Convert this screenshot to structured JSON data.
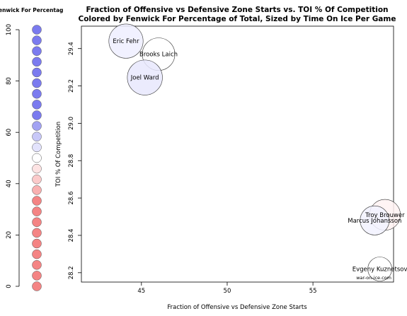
{
  "chart_data": {
    "type": "scatter",
    "title_line1": "Fraction of Offensive vs Defensive Zone Starts vs. TOI % Of Competition",
    "title_line2": "Colored by Fenwick For Percentage of Total, Sized by Time On Ice Per Game",
    "xlabel": "Fraction of Offensive vs Defensive Zone Starts",
    "ylabel": "TOI % Of Competition",
    "xlim": [
      41.5,
      59.7
    ],
    "ylim": [
      28.15,
      29.52
    ],
    "xticks": [
      45,
      50,
      55
    ],
    "yticks": [
      28.2,
      28.4,
      28.6,
      28.8,
      29.0,
      29.2,
      29.4
    ],
    "credit": "war-on-ice.com",
    "points": [
      {
        "label": "Eric Fehr",
        "x": 44.1,
        "y": 29.44,
        "toi": 15.2,
        "fenwick_pct": 49.5,
        "color": "#efefff"
      },
      {
        "label": "Brooks Laich",
        "x": 46.0,
        "y": 29.37,
        "toi": 15.0,
        "fenwick_pct": 50.0,
        "color": "#ffffff"
      },
      {
        "label": "Joel Ward",
        "x": 45.2,
        "y": 29.245,
        "toi": 15.3,
        "fenwick_pct": 53.0,
        "color": "#e8e8fd"
      },
      {
        "label": "Troy Brouwer",
        "x": 59.2,
        "y": 28.51,
        "toi": 14.8,
        "fenwick_pct": 47.5,
        "color": "#fff2f2"
      },
      {
        "label": "Marcus Johansson",
        "x": 58.6,
        "y": 28.48,
        "toi": 14.6,
        "fenwick_pct": 51.0,
        "color": "#f2f2ff"
      },
      {
        "label": "Evgeny Kuznetsov",
        "x": 58.9,
        "y": 28.22,
        "toi": 14.0,
        "fenwick_pct": 50.0,
        "color": "#ffffff"
      }
    ],
    "legend": {
      "title": "enwick For Percentag",
      "ticks": [
        0,
        20,
        40,
        60,
        80,
        100
      ],
      "swatches": [
        {
          "value": 100,
          "color": "#7b7bef"
        },
        {
          "value": 95,
          "color": "#7b7bef"
        },
        {
          "value": 90,
          "color": "#7b7bef"
        },
        {
          "value": 85,
          "color": "#7b7bef"
        },
        {
          "value": 80,
          "color": "#7b7bef"
        },
        {
          "value": 75,
          "color": "#7b7bef"
        },
        {
          "value": 70,
          "color": "#7b7bef"
        },
        {
          "value": 65,
          "color": "#7b7bef"
        },
        {
          "value": 60,
          "color": "#7b7bef"
        },
        {
          "value": 55,
          "color": "#a3a3f3"
        },
        {
          "value": 50,
          "color": "#c8c8f8"
        },
        {
          "value": 45,
          "color": "#e3e3fc"
        },
        {
          "value": 40,
          "color": "#ffffff"
        },
        {
          "value": 35,
          "color": "#fde3e3"
        },
        {
          "value": 30,
          "color": "#fbcaca"
        },
        {
          "value": 25,
          "color": "#f9b0b0"
        },
        {
          "value": 20,
          "color": "#f48484"
        },
        {
          "value": 15,
          "color": "#f48484"
        },
        {
          "value": 10,
          "color": "#f48484"
        },
        {
          "value": 5,
          "color": "#f48484"
        },
        {
          "value": 0,
          "color": "#f48484"
        },
        {
          "value": -5,
          "color": "#f48484"
        },
        {
          "value": -10,
          "color": "#f48484"
        },
        {
          "value": -15,
          "color": "#f48484"
        },
        {
          "value": -20,
          "color": "#f48484"
        }
      ]
    }
  }
}
